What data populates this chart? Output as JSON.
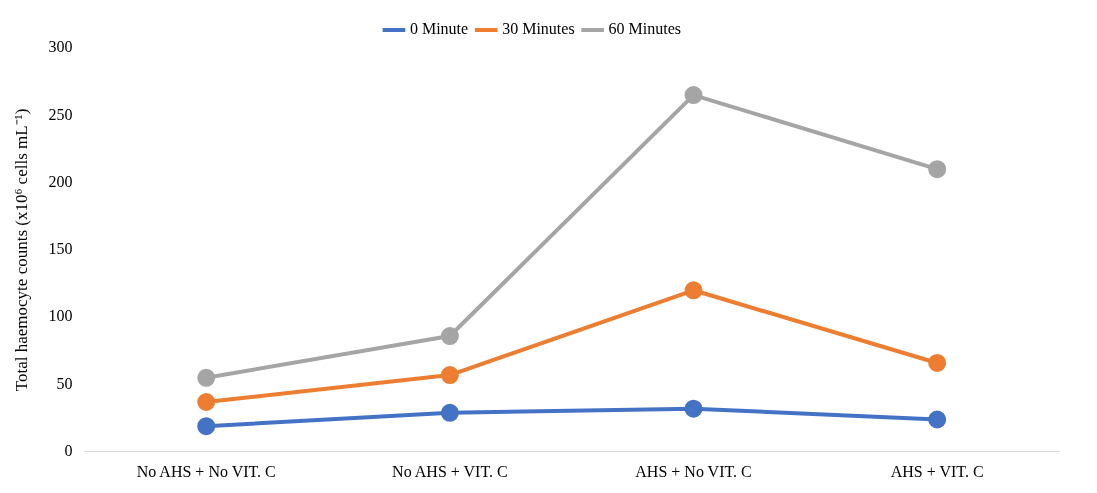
{
  "chart_data": {
    "type": "line",
    "ylabel": "Total haemocyte counts (x10⁶ cells mL⁻¹)",
    "categories": [
      "No AHS + No VIT. C",
      "No AHS + VIT. C",
      "AHS + No VIT. C",
      "AHS + VIT. C"
    ],
    "series": [
      {
        "name": "0 Minute",
        "color": "#4472c4",
        "values": [
          19,
          29,
          32,
          24
        ]
      },
      {
        "name": "30 Minutes",
        "color": "#ed7d31",
        "values": [
          37,
          57,
          120,
          66
        ]
      },
      {
        "name": "60 Minutes",
        "color": "#a5a5a5",
        "values": [
          55,
          86,
          265,
          210
        ]
      }
    ],
    "ylim": [
      0,
      300
    ],
    "yticks": [
      0,
      50,
      100,
      150,
      200,
      250,
      300
    ],
    "grid": false,
    "legend": "top",
    "marker": "circle",
    "line_style": "solid"
  }
}
